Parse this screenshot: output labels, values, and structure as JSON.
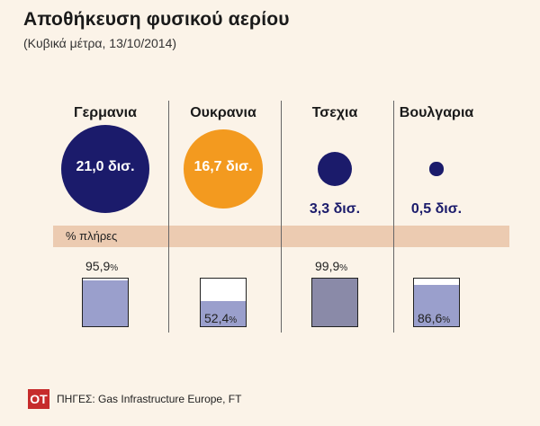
{
  "title": "Αποθήκευση φυσικού αερίου",
  "subtitle": "(Κυβικά μέτρα, 13/10/2014)",
  "band_label": "% πλήρες",
  "source": "ΠΗΓΕΣ: Gas Infrastructure Europe, FT",
  "logo": "OT",
  "colors": {
    "background": "#fbf3e8",
    "navy": "#1b1b6b",
    "orange": "#f39a1f",
    "band": "#eccbb1",
    "tank_fill": "#9a9fcc",
    "tank_fill_dark": "#8a8aa8",
    "logo_red": "#c62b2b"
  },
  "chart_data": {
    "type": "bubble",
    "units": "δισ. κυβικά μέτρα",
    "countries": [
      {
        "name": "Γερμανια",
        "storage": 21.0,
        "storage_label": "21,0 δισ.",
        "color": "#1b1b6b",
        "label_inside": true,
        "percent_full": 95.9,
        "pct_num": "95,9",
        "pct_sign": "%",
        "tank_color": "#9a9fcc"
      },
      {
        "name": "Ουκρανια",
        "storage": 16.7,
        "storage_label": "16,7 δισ.",
        "color": "#f39a1f",
        "label_inside": true,
        "percent_full": 52.4,
        "pct_num": "52,4",
        "pct_sign": "%",
        "tank_color": "#9a9fcc"
      },
      {
        "name": "Τσεχια",
        "storage": 3.3,
        "storage_label": "3,3 δισ.",
        "color": "#1b1b6b",
        "label_inside": false,
        "percent_full": 99.9,
        "pct_num": "99,9",
        "pct_sign": "%",
        "tank_color": "#8a8aa8"
      },
      {
        "name": "Βουλγαρια",
        "storage": 0.5,
        "storage_label": "0,5 δισ.",
        "color": "#1b1b6b",
        "label_inside": false,
        "percent_full": 86.6,
        "pct_num": "86,6",
        "pct_sign": "%",
        "tank_color": "#9a9fcc"
      }
    ]
  }
}
